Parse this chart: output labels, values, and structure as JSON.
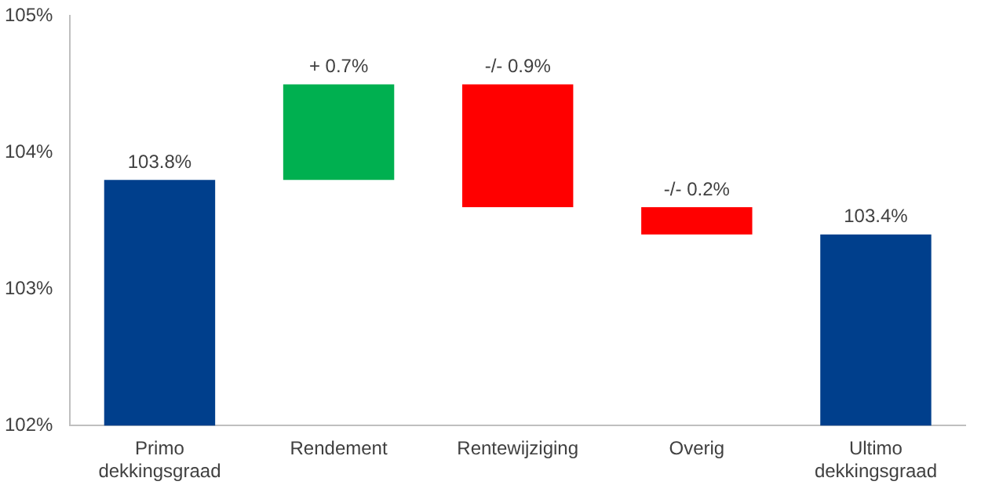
{
  "chart_data": {
    "type": "bar",
    "categories": [
      "Primo dekkingsgraad",
      "Rendement",
      "Rentewijziging",
      "Overig",
      "Ultimo dekkingsgraad"
    ],
    "values": [
      103.8,
      0.7,
      -0.9,
      -0.2,
      103.4
    ],
    "base": [
      null,
      103.8,
      104.5,
      103.6,
      null
    ],
    "colors": [
      "#003f8c",
      "#00b050",
      "#ff0000",
      "#ff0000",
      "#003f8c"
    ],
    "value_labels": [
      "103.8%",
      "+ 0.7%",
      "-/- 0.9%",
      "-/- 0.2%",
      "103.4%"
    ],
    "ylim": [
      102,
      105
    ],
    "yticks": [
      {
        "value": 102,
        "label": "102%"
      },
      {
        "value": 103,
        "label": "103%"
      },
      {
        "value": 104,
        "label": "104%"
      },
      {
        "value": 105,
        "label": "105%"
      }
    ],
    "grid": false,
    "legend": false
  }
}
